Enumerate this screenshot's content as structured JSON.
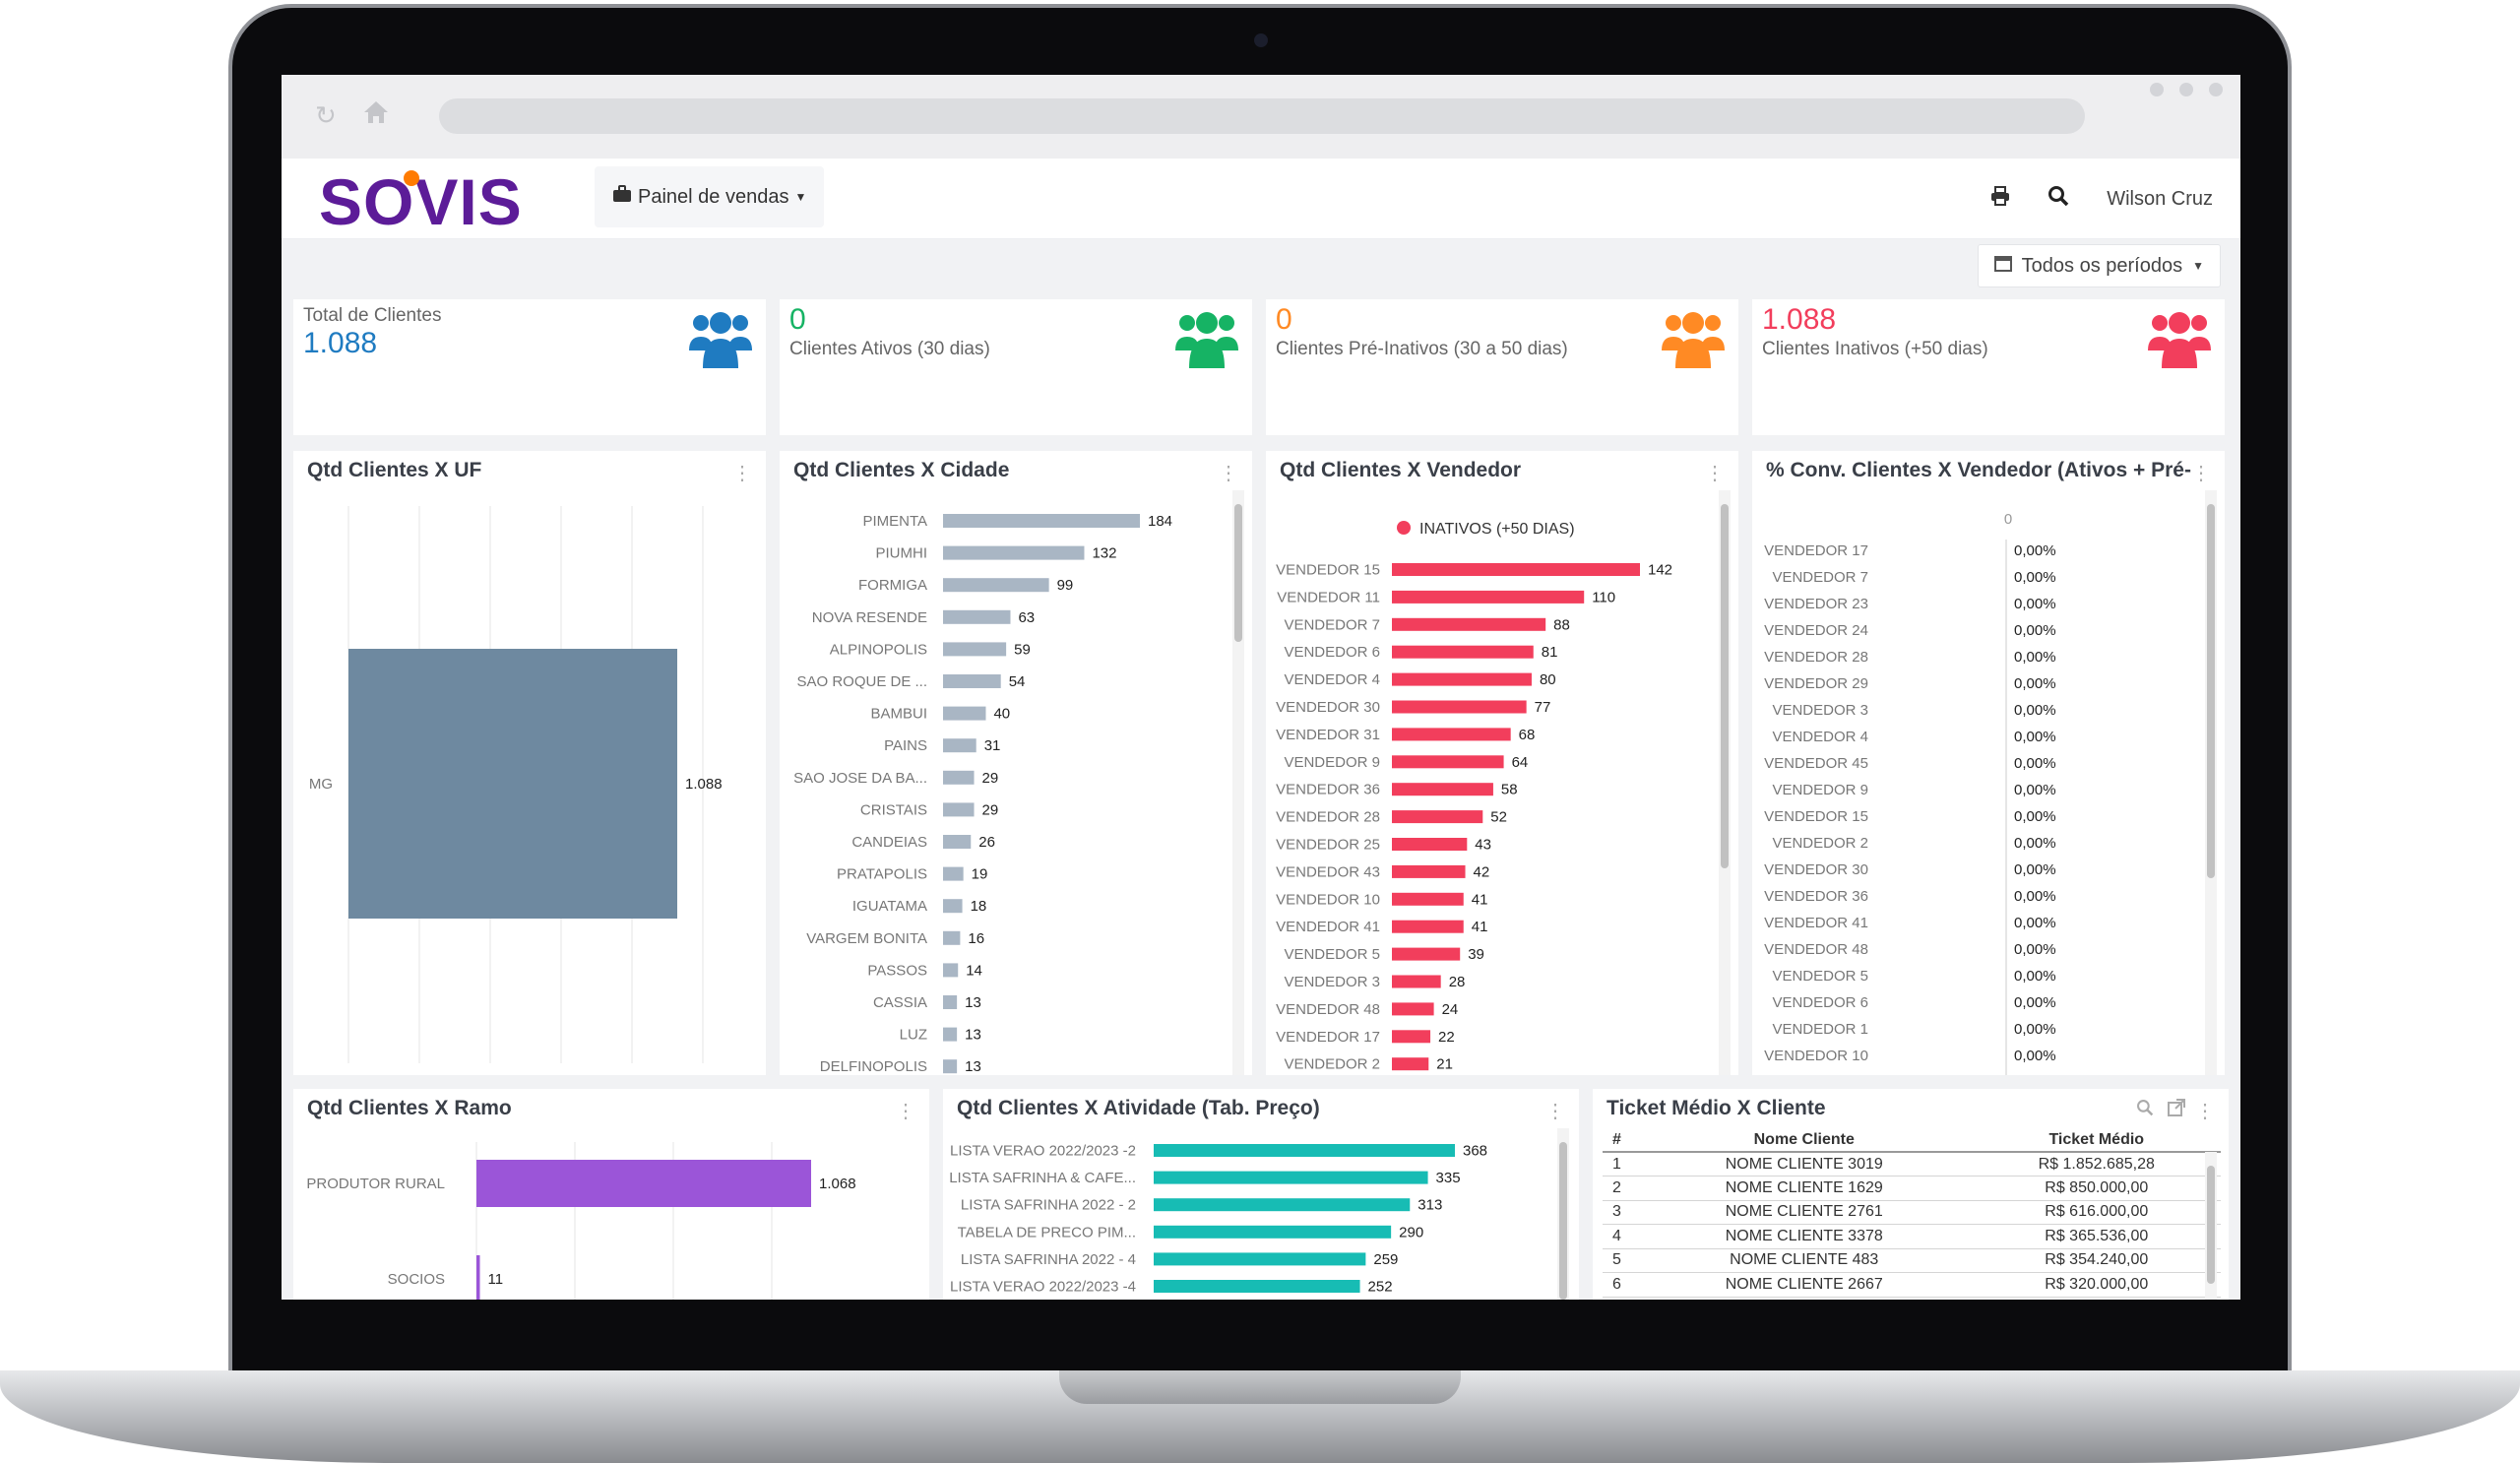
{
  "header": {
    "logo": "SOVIS",
    "panel_label": "Painel de vendas",
    "user_name": "Wilson Cruz",
    "period_label": "Todos os períodos"
  },
  "kpis": [
    {
      "label": "Total de Clientes",
      "value": "1.088",
      "color": "#1f7bc1"
    },
    {
      "label": "Clientes Ativos (30 dias)",
      "value": "0",
      "color": "#16b364"
    },
    {
      "label": "Clientes Pré-Inativos (30 a 50 dias)",
      "value": "0",
      "color": "#ff8a24"
    },
    {
      "label": "Clientes Inativos (+50 dias)",
      "value": "1.088",
      "color": "#f23e5c"
    }
  ],
  "panels": {
    "uf": {
      "title": "Qtd Clientes X UF"
    },
    "cidade": {
      "title": "Qtd Clientes X Cidade"
    },
    "vendedor": {
      "title": "Qtd Clientes X Vendedor",
      "legend": "INATIVOS (+50 DIAS)"
    },
    "conv": {
      "title": "% Conv. Clientes X Vendedor (Ativos + Pré-",
      "axis_zero": "0"
    },
    "ramo": {
      "title": "Qtd Clientes X Ramo"
    },
    "atividade": {
      "title": "Qtd Clientes X Atividade (Tab. Preço)"
    },
    "ticket": {
      "title": "Ticket Médio X Cliente"
    }
  },
  "chart_data": [
    {
      "type": "bar",
      "orientation": "horizontal",
      "color": "#6e89a0",
      "categories": [
        "MG"
      ],
      "values": [
        1088
      ],
      "value_labels": [
        "1.088"
      ]
    },
    {
      "type": "bar",
      "orientation": "horizontal",
      "color": "#a9b6c4",
      "categories": [
        "PIMENTA",
        "PIUMHI",
        "FORMIGA",
        "NOVA RESENDE",
        "ALPINOPOLIS",
        "SAO ROQUE DE ...",
        "BAMBUI",
        "PAINS",
        "SAO JOSE DA BA...",
        "CRISTAIS",
        "CANDEIAS",
        "PRATAPOLIS",
        "IGUATAMA",
        "VARGEM BONITA",
        "PASSOS",
        "CASSIA",
        "LUZ",
        "DELFINOPOLIS"
      ],
      "values": [
        184,
        132,
        99,
        63,
        59,
        54,
        40,
        31,
        29,
        29,
        26,
        19,
        18,
        16,
        14,
        13,
        13,
        13
      ]
    },
    {
      "type": "bar",
      "orientation": "horizontal",
      "color": "#f23e5c",
      "series": [
        {
          "name": "INATIVOS (+50 DIAS)",
          "values": [
            142,
            110,
            88,
            81,
            80,
            77,
            68,
            64,
            58,
            52,
            43,
            42,
            41,
            41,
            39,
            28,
            24,
            22,
            21
          ]
        }
      ],
      "categories": [
        "VENDEDOR 15",
        "VENDEDOR 11",
        "VENDEDOR 7",
        "VENDEDOR 6",
        "VENDEDOR 4",
        "VENDEDOR 30",
        "VENDEDOR 31",
        "VENDEDOR 9",
        "VENDEDOR 36",
        "VENDEDOR 28",
        "VENDEDOR 25",
        "VENDEDOR 43",
        "VENDEDOR 10",
        "VENDEDOR 41",
        "VENDEDOR 5",
        "VENDEDOR 3",
        "VENDEDOR 48",
        "VENDEDOR 17",
        "VENDEDOR 2"
      ]
    },
    {
      "type": "bar",
      "orientation": "horizontal",
      "categories": [
        "VENDEDOR 17",
        "VENDEDOR 7",
        "VENDEDOR 23",
        "VENDEDOR 24",
        "VENDEDOR 28",
        "VENDEDOR 29",
        "VENDEDOR 3",
        "VENDEDOR 4",
        "VENDEDOR 45",
        "VENDEDOR 9",
        "VENDEDOR 15",
        "VENDEDOR 2",
        "VENDEDOR 30",
        "VENDEDOR 36",
        "VENDEDOR 41",
        "VENDEDOR 48",
        "VENDEDOR 5",
        "VENDEDOR 6",
        "VENDEDOR 1",
        "VENDEDOR 10"
      ],
      "values": [
        0,
        0,
        0,
        0,
        0,
        0,
        0,
        0,
        0,
        0,
        0,
        0,
        0,
        0,
        0,
        0,
        0,
        0,
        0,
        0
      ],
      "value_labels": [
        "0,00%",
        "0,00%",
        "0,00%",
        "0,00%",
        "0,00%",
        "0,00%",
        "0,00%",
        "0,00%",
        "0,00%",
        "0,00%",
        "0,00%",
        "0,00%",
        "0,00%",
        "0,00%",
        "0,00%",
        "0,00%",
        "0,00%",
        "0,00%",
        "0,00%",
        "0,00%"
      ]
    },
    {
      "type": "bar",
      "orientation": "horizontal",
      "color": "#9b55d8",
      "categories": [
        "PRODUTOR RURAL",
        "SOCIOS"
      ],
      "values": [
        1068,
        11
      ],
      "value_labels": [
        "1.068",
        "11"
      ]
    },
    {
      "type": "bar",
      "orientation": "horizontal",
      "color": "#17bcb4",
      "categories": [
        "LISTA VERAO 2022/2023 -2",
        "LISTA SAFRINHA & CAFE...",
        "LISTA SAFRINHA 2022 - 2",
        "TABELA DE PRECO PIM...",
        "LISTA SAFRINHA 2022 - 4",
        "LISTA VERAO 2022/2023 -4"
      ],
      "values": [
        368,
        335,
        313,
        290,
        259,
        252
      ]
    },
    {
      "type": "table",
      "columns": [
        "#",
        "Nome Cliente",
        "Ticket Médio"
      ],
      "rows": [
        [
          "1",
          "NOME CLIENTE 3019",
          "R$ 1.852.685,28"
        ],
        [
          "2",
          "NOME CLIENTE 1629",
          "R$ 850.000,00"
        ],
        [
          "3",
          "NOME CLIENTE 2761",
          "R$ 616.000,00"
        ],
        [
          "4",
          "NOME CLIENTE 3378",
          "R$ 365.536,00"
        ],
        [
          "5",
          "NOME CLIENTE 483",
          "R$ 354.240,00"
        ],
        [
          "6",
          "NOME CLIENTE 2667",
          "R$ 320.000,00"
        ]
      ]
    }
  ]
}
